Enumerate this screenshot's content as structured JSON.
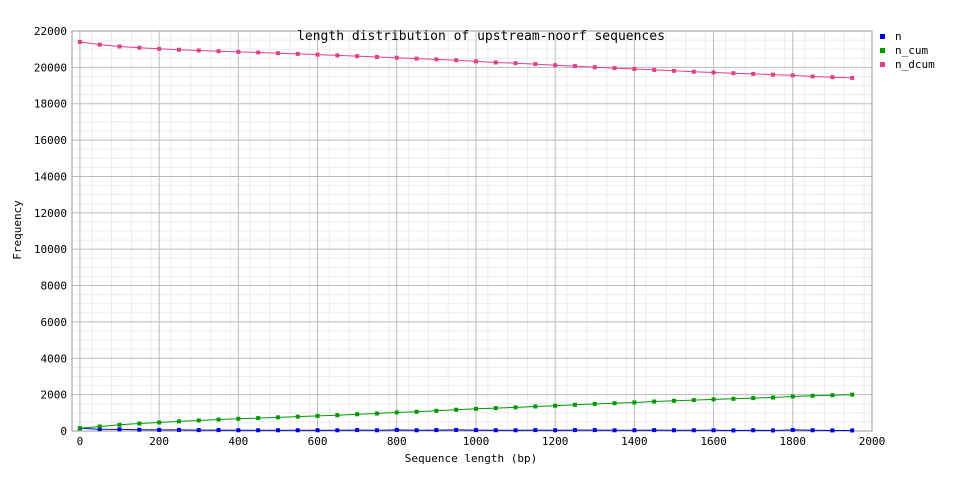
{
  "chart_data": {
    "type": "line",
    "title": "length distribution of upstream-noorf sequences",
    "xlabel": "Sequence length (bp)",
    "ylabel": "Frequency",
    "xlim": [
      -20,
      2000
    ],
    "ylim": [
      0,
      22000
    ],
    "x_ticks": [
      0,
      200,
      400,
      600,
      800,
      1000,
      1200,
      1400,
      1600,
      1800,
      2000
    ],
    "x_tick_labels": [
      "0",
      "200",
      "400",
      "600",
      "800",
      "1000",
      "1200",
      "1400",
      "1600",
      "1800",
      "2000"
    ],
    "y_ticks": [
      0,
      2000,
      4000,
      6000,
      8000,
      10000,
      12000,
      14000,
      16000,
      18000,
      20000,
      22000
    ],
    "y_tick_labels": [
      "0",
      "2000",
      "4000",
      "6000",
      "8000",
      "10000",
      "12000",
      "14000",
      "16000",
      "18000",
      "20000",
      "22000"
    ],
    "grid": true,
    "legend_position": "right",
    "x": [
      0,
      50,
      100,
      150,
      200,
      250,
      300,
      350,
      400,
      450,
      500,
      550,
      600,
      650,
      700,
      750,
      800,
      850,
      900,
      950,
      1000,
      1050,
      1100,
      1150,
      1200,
      1250,
      1300,
      1350,
      1400,
      1450,
      1500,
      1550,
      1600,
      1650,
      1700,
      1750,
      1800,
      1850,
      1900,
      1950
    ],
    "series": [
      {
        "name": "n",
        "color": "#0000dd",
        "values": [
          150,
          100,
          90,
          70,
          60,
          60,
          50,
          50,
          40,
          40,
          40,
          40,
          40,
          40,
          50,
          40,
          60,
          40,
          50,
          60,
          50,
          40,
          40,
          50,
          40,
          50,
          50,
          40,
          40,
          50,
          40,
          40,
          40,
          30,
          40,
          30,
          60,
          40,
          30,
          30
        ]
      },
      {
        "name": "n_cum",
        "color": "#009900",
        "values": [
          150,
          250,
          340,
          410,
          470,
          530,
          580,
          630,
          670,
          710,
          750,
          790,
          830,
          870,
          920,
          960,
          1020,
          1060,
          1110,
          1170,
          1220,
          1260,
          1300,
          1350,
          1390,
          1440,
          1490,
          1530,
          1570,
          1620,
          1660,
          1700,
          1740,
          1770,
          1810,
          1840,
          1900,
          1940,
          1970,
          2000
        ]
      },
      {
        "name": "n_dcum",
        "color": "#e0408a",
        "values": [
          21400,
          21250,
          21150,
          21080,
          21020,
          20970,
          20930,
          20890,
          20850,
          20820,
          20780,
          20740,
          20700,
          20660,
          20620,
          20570,
          20530,
          20480,
          20440,
          20390,
          20330,
          20270,
          20230,
          20180,
          20120,
          20070,
          20010,
          19960,
          19910,
          19860,
          19810,
          19760,
          19720,
          19680,
          19640,
          19600,
          19560,
          19500,
          19460,
          19420
        ]
      }
    ]
  }
}
